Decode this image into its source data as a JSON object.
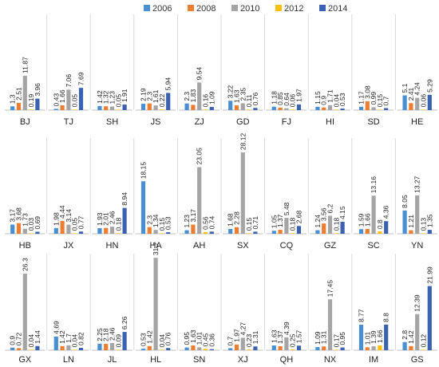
{
  "chart_data": {
    "type": "bar",
    "title": "",
    "xlabel": "",
    "ylabel": "",
    "legend_position": "top",
    "grid": false,
    "series": [
      {
        "name": "2006",
        "color": "#4a8fd1"
      },
      {
        "name": "2008",
        "color": "#ed7d31"
      },
      {
        "name": "2010",
        "color": "#a5a5a5"
      },
      {
        "name": "2012",
        "color": "#ffc000"
      },
      {
        "name": "2014",
        "color": "#3a62b0"
      }
    ],
    "panels": [
      {
        "category": "BJ",
        "values": [
          1.3,
          2.51,
          11.87,
          0.19,
          3.96
        ]
      },
      {
        "category": "TJ",
        "values": [
          0.43,
          1.66,
          7.06,
          0.05,
          7.69
        ]
      },
      {
        "category": "SH",
        "values": [
          1.42,
          1.32,
          1.23,
          0.05,
          1.91
        ]
      },
      {
        "category": "JS",
        "values": [
          2.19,
          2.3,
          1.61,
          0.22,
          5.94
        ]
      },
      {
        "category": "ZJ",
        "values": [
          2.3,
          1.83,
          9.54,
          0.16,
          1.09
        ]
      },
      {
        "category": "GD",
        "values": [
          3.22,
          1.63,
          2.35,
          0.11,
          0.76
        ]
      },
      {
        "category": "FJ",
        "values": [
          1.18,
          0.85,
          0.64,
          0.06,
          1.97
        ]
      },
      {
        "category": "HI",
        "values": [
          1.15,
          0.9,
          1.71,
          0.04,
          0.53
        ]
      },
      {
        "category": "SD",
        "values": [
          1.17,
          3.08,
          0.99,
          0.15,
          0.7
        ]
      },
      {
        "category": "HE",
        "values": [
          5.1,
          2.41,
          4.24,
          0.06,
          5.29
        ]
      },
      {
        "category": "HB",
        "values": [
          3.17,
          3.68,
          1.73,
          0.03,
          0.69
        ]
      },
      {
        "category": "JX",
        "values": [
          1.98,
          4.44,
          3.14,
          0.05,
          0.77
        ]
      },
      {
        "category": "HN",
        "values": [
          1.93,
          2.01,
          2.46,
          0.18,
          8.94
        ]
      },
      {
        "category": "HA",
        "values": [
          18.15,
          2.3,
          1.34,
          0.15,
          0.53
        ]
      },
      {
        "category": "AH",
        "values": [
          1.23,
          3.17,
          23.05,
          0.56,
          0.74
        ]
      },
      {
        "category": "SX",
        "values": [
          1.68,
          2.28,
          28.12,
          0.15,
          0.71
        ]
      },
      {
        "category": "CQ",
        "values": [
          1.05,
          1.37,
          5.48,
          0.18,
          2.68
        ]
      },
      {
        "category": "GZ",
        "values": [
          1.24,
          3.56,
          6.2,
          0.18,
          4.15
        ]
      },
      {
        "category": "SC",
        "values": [
          1.59,
          1.66,
          13.16,
          0.8,
          4.36
        ]
      },
      {
        "category": "YN",
        "values": [
          8.05,
          1.21,
          13.27,
          0.13,
          1.35
        ]
      },
      {
        "category": "GX",
        "values": [
          0.9,
          0.72,
          26.3,
          0.04,
          1.44
        ]
      },
      {
        "category": "LN",
        "values": [
          4.69,
          1.42,
          1.7,
          0.04,
          0.82
        ]
      },
      {
        "category": "JL",
        "values": [
          2.25,
          2.18,
          2.46,
          0.09,
          6.26
        ]
      },
      {
        "category": "HL",
        "values": [
          0.53,
          1.42,
          31.7,
          0.04,
          0.76
        ]
      },
      {
        "category": "SN",
        "values": [
          0.95,
          1.63,
          1.01,
          0.45,
          0.36
        ]
      },
      {
        "category": "XJ",
        "values": [
          0.7,
          1.97,
          4.27,
          0.23,
          1.31
        ]
      },
      {
        "category": "QH",
        "values": [
          1.63,
          1.37,
          4.39,
          0.25,
          1.57
        ]
      },
      {
        "category": "NX",
        "values": [
          1.09,
          1.31,
          17.45,
          0.17,
          0.95
        ]
      },
      {
        "category": "IM",
        "values": [
          8.77,
          1.01,
          1.39,
          1.66,
          8.8
        ]
      },
      {
        "category": "GS",
        "values": [
          2.8,
          1.42,
          12.39,
          0.12,
          21.99
        ]
      }
    ]
  }
}
